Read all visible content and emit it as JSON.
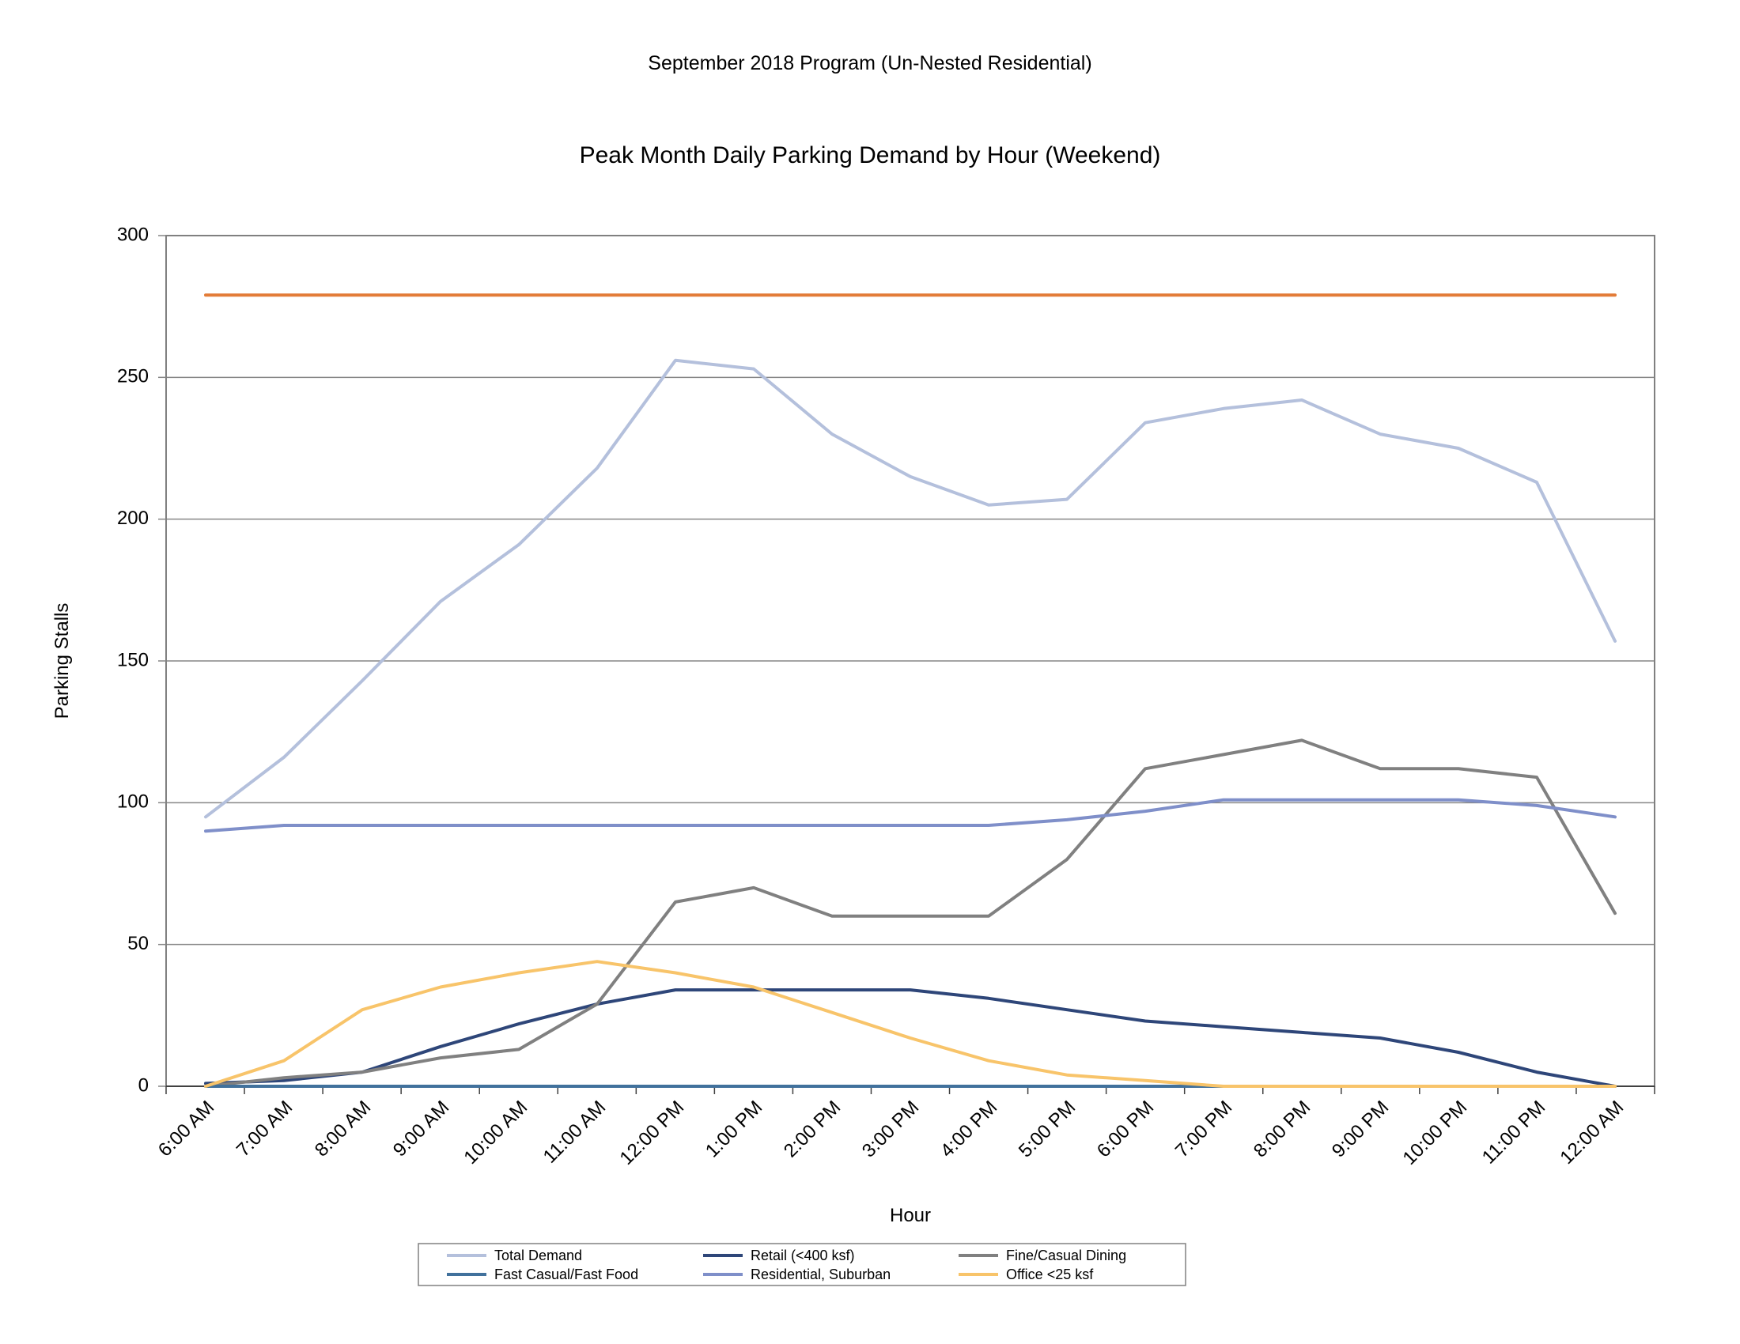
{
  "page": {
    "super_title": "September 2018 Program (Un-Nested Residential)"
  },
  "chart_data": {
    "type": "line",
    "title": "Peak Month Daily Parking Demand by Hour (Weekend)",
    "xlabel": "Hour",
    "ylabel": "Parking Stalls",
    "ylim": [
      0,
      300
    ],
    "yticks": [
      0,
      50,
      100,
      150,
      200,
      250,
      300
    ],
    "grid": true,
    "legend_position": "bottom",
    "categories": [
      "6:00 AM",
      "7:00 AM",
      "8:00 AM",
      "9:00 AM",
      "10:00 AM",
      "11:00 AM",
      "12:00 PM",
      "1:00 PM",
      "2:00 PM",
      "3:00 PM",
      "4:00 PM",
      "5:00 PM",
      "6:00 PM",
      "7:00 PM",
      "8:00 PM",
      "9:00 PM",
      "10:00 PM",
      "11:00 PM",
      "12:00 AM"
    ],
    "series": [
      {
        "name": "Total Demand",
        "color": "#b4c0dc",
        "values": [
          95,
          116,
          143,
          171,
          191,
          218,
          256,
          253,
          230,
          215,
          205,
          207,
          234,
          239,
          242,
          230,
          225,
          213,
          157
        ]
      },
      {
        "name": "Retail (<400 ksf)",
        "color": "#2e4679",
        "values": [
          1,
          2,
          5,
          14,
          22,
          29,
          34,
          34,
          34,
          34,
          31,
          27,
          23,
          21,
          19,
          17,
          12,
          5,
          0
        ]
      },
      {
        "name": "Fine/Casual Dining",
        "color": "#808080",
        "values": [
          0,
          3,
          5,
          10,
          13,
          29,
          65,
          70,
          60,
          60,
          60,
          80,
          112,
          117,
          122,
          112,
          112,
          109,
          61
        ]
      },
      {
        "name": "Fast Casual/Fast Food",
        "color": "#41719c",
        "values": [
          0,
          0,
          0,
          0,
          0,
          0,
          0,
          0,
          0,
          0,
          0,
          0,
          0,
          0,
          0,
          0,
          0,
          0,
          0
        ]
      },
      {
        "name": "Residential, Suburban",
        "color": "#7f8fc9",
        "values": [
          90,
          92,
          92,
          92,
          92,
          92,
          92,
          92,
          92,
          92,
          92,
          94,
          97,
          101,
          101,
          101,
          101,
          99,
          95
        ]
      },
      {
        "name": "Office <25 ksf",
        "color": "#f8c46a",
        "values": [
          0,
          9,
          27,
          35,
          40,
          44,
          40,
          35,
          26,
          17,
          9,
          4,
          2,
          0,
          0,
          0,
          0,
          0,
          0
        ]
      },
      {
        "name": "",
        "color": "#e37c38",
        "values": [
          279,
          279,
          279,
          279,
          279,
          279,
          279,
          279,
          279,
          279,
          279,
          279,
          279,
          279,
          279,
          279,
          279,
          279,
          279
        ]
      }
    ],
    "legend_order": [
      0,
      1,
      2,
      3,
      4,
      5
    ]
  }
}
